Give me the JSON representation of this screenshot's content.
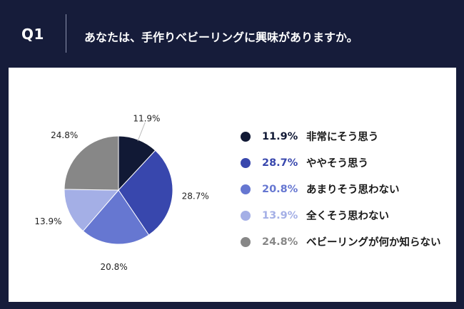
{
  "header": {
    "qnum": "Q1",
    "question": "あなたは、手作りベビーリングに興味がありますか。"
  },
  "chart_data": {
    "type": "pie",
    "categories": [
      "非常にそう思う",
      "ややそう思う",
      "あまりそう思わない",
      "全くそう思わない",
      "ベビーリングが何か知らない"
    ],
    "values": [
      11.9,
      28.7,
      20.8,
      13.9,
      24.8
    ],
    "labels": [
      "11.9%",
      "28.7%",
      "20.8%",
      "13.9%",
      "24.8%"
    ],
    "colors": [
      "#111935",
      "#3847ad",
      "#6677d1",
      "#a4afe6",
      "#878787"
    ],
    "legend_placement": "right"
  },
  "legend": [
    {
      "pct": "11.9%",
      "label": "非常にそう思う",
      "color": "#111935"
    },
    {
      "pct": "28.7%",
      "label": "ややそう思う",
      "color": "#3847ad"
    },
    {
      "pct": "20.8%",
      "label": "あまりそう思わない",
      "color": "#6677d1"
    },
    {
      "pct": "13.9%",
      "label": "全くそう思わない",
      "color": "#a4afe6"
    },
    {
      "pct": "24.8%",
      "label": "ベビーリングが何か知らない",
      "color": "#878787"
    }
  ]
}
